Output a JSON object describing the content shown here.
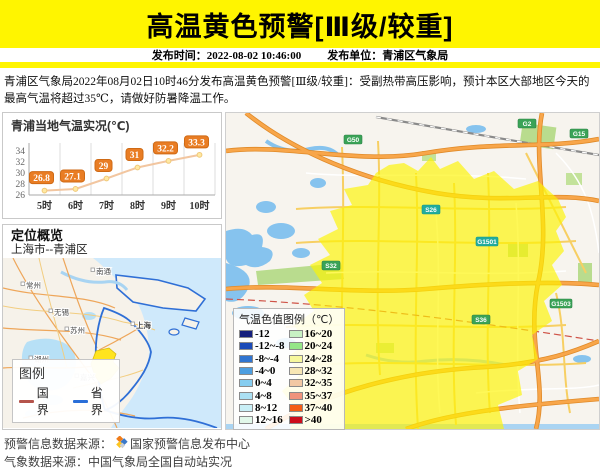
{
  "banner": {
    "title": "高温黄色预警[Ⅲ级/较重]",
    "bg_color": "#fff500"
  },
  "publish": {
    "time_label": "发布时间：",
    "time": "2022-08-02 10:46:00",
    "unit_label": "发布单位：",
    "unit": "青浦区气象局"
  },
  "description": "青浦区气象局2022年08月02日10时46分发布高温黄色预警[Ⅲ级/较重]：受副热带高压影响，预计本区大部地区今天的最高气温将超过35℃，请做好防暑降温工作。",
  "chart_data": {
    "type": "line",
    "title": "青浦当地气温实况(℃)",
    "categories": [
      "5时",
      "6时",
      "7时",
      "8时",
      "9时",
      "10时"
    ],
    "values": [
      26.8,
      27.1,
      29,
      31,
      32.2,
      33.3
    ],
    "xlabel": "",
    "ylabel": "",
    "ylim": [
      26,
      34
    ],
    "yticks": [
      26,
      28,
      30,
      32,
      34
    ],
    "grid": true,
    "legend_position": "none",
    "line_color": "#f2c6a0",
    "point_color": "#ffe9a2",
    "point_stroke": "#f0c878",
    "label_bg": "#e97d24",
    "label_border": "#cf6a15"
  },
  "locator": {
    "title": "定位概览",
    "subtitle": "上海市--青浦区",
    "legend": {
      "title": "图例",
      "items": [
        {
          "label": "国界",
          "color": "#b5544b"
        },
        {
          "label": "省界",
          "color": "#2a6fd8"
        }
      ]
    },
    "cities": [
      "南通",
      "常州",
      "无锡",
      "苏州",
      "上海",
      "湖州",
      "嘉兴"
    ]
  },
  "map": {
    "temp_legend": {
      "title": "气温色值图例（℃）",
      "items": [
        {
          "label": "-12",
          "color": "#16207d"
        },
        {
          "label": "-12~-8",
          "color": "#1c4bb8"
        },
        {
          "label": "-8~-4",
          "color": "#2f74d0"
        },
        {
          "label": "-4~0",
          "color": "#4d9ee0"
        },
        {
          "label": "0~4",
          "color": "#86cdf0"
        },
        {
          "label": "4~8",
          "color": "#abe0f3"
        },
        {
          "label": "8~12",
          "color": "#c9eff6"
        },
        {
          "label": "12~16",
          "color": "#e1f8ea"
        },
        {
          "label": "16~20",
          "color": "#c8f2c3"
        },
        {
          "label": "20~24",
          "color": "#95e788"
        },
        {
          "label": "24~28",
          "color": "#f7f89c"
        },
        {
          "label": "28~32",
          "color": "#f7e7b4"
        },
        {
          "label": "32~35",
          "color": "#f2c8a4"
        },
        {
          "label": "35~37",
          "color": "#f0937c"
        },
        {
          "label": "37~40",
          "color": "#f45c14"
        },
        {
          "label": ">40",
          "color": "#cd0d1c"
        }
      ]
    },
    "road_labels": [
      "G50",
      "G2",
      "G15",
      "S26",
      "G1501",
      "S32",
      "G1503",
      "S36"
    ],
    "overlay_color": "#fef500"
  },
  "footer": {
    "line1_label": "预警信息数据来源：",
    "line1_source": "国家预警信息发布中心",
    "line2_label": "气象数据来源：",
    "line2_source": "中国气象局全国自动站实况"
  }
}
